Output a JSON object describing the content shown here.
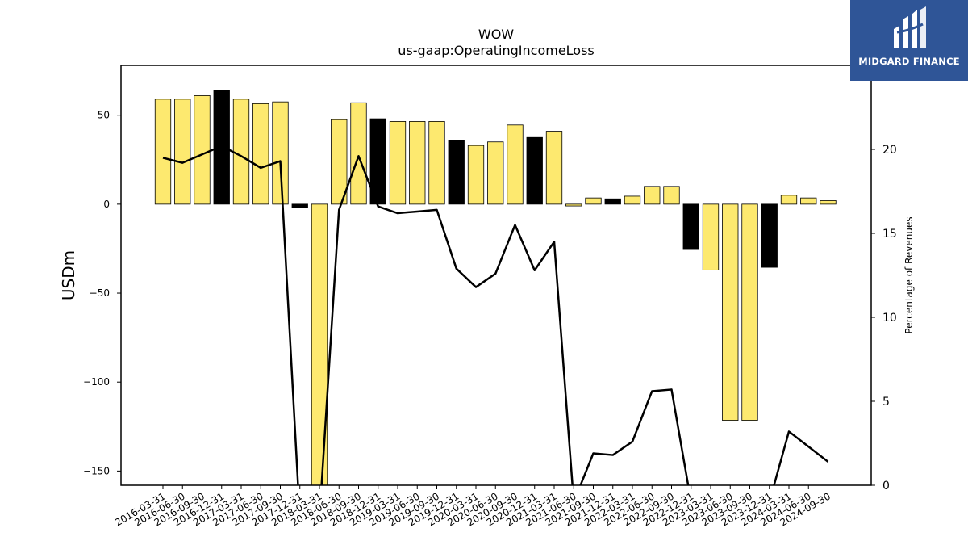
{
  "chart_data": {
    "type": "bar",
    "title": "WOW",
    "subtitle": "us-gaap:OperatingIncomeLoss",
    "ylabel": "USDm",
    "ylabel_right": "Percentage of Revenues",
    "ylim": [
      -158,
      78
    ],
    "ylim_right": [
      0,
      25
    ],
    "yticks": [
      50,
      0,
      -50,
      -100,
      -150
    ],
    "yticks_right": [
      0,
      5,
      10,
      15,
      20
    ],
    "categories": [
      "2016-03-31",
      "2016-06-30",
      "2016-09-30",
      "2016-12-31",
      "2017-03-31",
      "2017-06-30",
      "2017-09-30",
      "2017-12-31",
      "2018-03-31",
      "2018-06-30",
      "2018-09-30",
      "2018-12-31",
      "2019-03-31",
      "2019-06-30",
      "2019-09-30",
      "2019-12-31",
      "2020-03-31",
      "2020-06-30",
      "2020-09-30",
      "2020-12-31",
      "2021-03-31",
      "2021-06-30",
      "2021-09-30",
      "2021-12-31",
      "2022-03-31",
      "2022-06-30",
      "2022-09-30",
      "2022-12-31",
      "2023-03-31",
      "2023-06-30",
      "2023-09-30",
      "2023-12-31",
      "2024-03-31",
      "2024-06-30",
      "2024-09-30"
    ],
    "series": [
      {
        "values": [
          59,
          59,
          61,
          64,
          59,
          56.5,
          57.5,
          -2,
          -165,
          47.5,
          57,
          48,
          46.5,
          46.5,
          46.5,
          36,
          33,
          35,
          44.5,
          37.5,
          41,
          -1,
          3.5,
          3,
          4.5,
          10,
          10,
          -25.5,
          -37,
          -121.5,
          -121.5,
          -35.5,
          5,
          3.5,
          2
        ]
      },
      {
        "type": "line",
        "values": [
          19.5,
          19.2,
          19.7,
          20.2,
          19.6,
          18.9,
          19.3,
          -2,
          -2,
          16.4,
          19.6,
          16.6,
          16.2,
          16.3,
          16.4,
          12.9,
          11.8,
          12.6,
          15.5,
          12.8,
          14.5,
          -1,
          1.9,
          1.8,
          2.6,
          5.6,
          5.7,
          -1,
          -1,
          -1,
          -1,
          -1,
          3.2,
          2.3,
          1.4
        ]
      }
    ],
    "bar_colors": [
      "#fde96f",
      "#fde96f",
      "#fde96f",
      "#000000",
      "#fde96f",
      "#fde96f",
      "#fde96f",
      "#000000",
      "#fde96f",
      "#fde96f",
      "#fde96f",
      "#000000",
      "#fde96f",
      "#fde96f",
      "#fde96f",
      "#000000",
      "#fde96f",
      "#fde96f",
      "#fde96f",
      "#000000",
      "#fde96f",
      "#fde96f",
      "#fde96f",
      "#000000",
      "#fde96f",
      "#fde96f",
      "#fde96f",
      "#000000",
      "#fde96f",
      "#fde96f",
      "#fde96f",
      "#000000",
      "#fde96f",
      "#fde96f",
      "#fde96f"
    ],
    "line_color": "#000000",
    "grid": false
  },
  "logo": {
    "text": "MIDGARD FINANCE",
    "background": "#2f5597"
  }
}
